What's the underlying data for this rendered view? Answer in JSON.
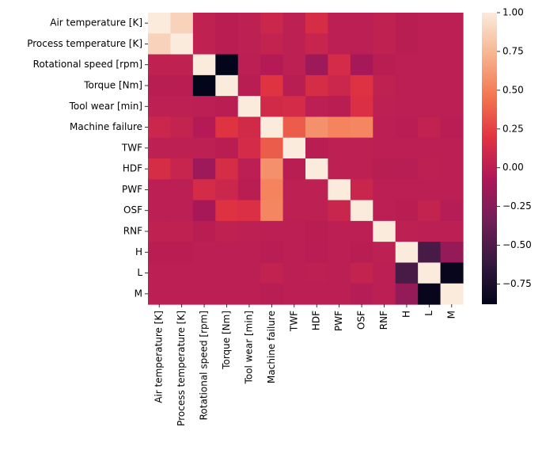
{
  "chart_data": {
    "type": "heatmap",
    "title": "",
    "xlabel": "",
    "ylabel": "",
    "labels": [
      "Air temperature [K]",
      "Process temperature [K]",
      "Rotational speed [rpm]",
      "Torque [Nm]",
      "Tool wear [min]",
      "Machine failure",
      "TWF",
      "HDF",
      "PWF",
      "OSF",
      "RNF",
      "H",
      "L",
      "M"
    ],
    "matrix": [
      [
        1.0,
        0.88,
        0.02,
        -0.01,
        0.01,
        0.08,
        0.01,
        0.14,
        0.0,
        0.0,
        0.02,
        -0.01,
        0.0,
        0.0
      ],
      [
        0.88,
        1.0,
        0.02,
        -0.01,
        0.01,
        0.04,
        0.01,
        0.06,
        0.0,
        0.0,
        0.02,
        -0.01,
        0.0,
        0.0
      ],
      [
        0.02,
        0.02,
        1.0,
        -0.88,
        0.0,
        -0.04,
        0.01,
        -0.14,
        0.12,
        -0.1,
        -0.01,
        0.0,
        0.0,
        0.0
      ],
      [
        -0.01,
        -0.01,
        -0.88,
        1.0,
        -0.01,
        0.19,
        -0.01,
        0.14,
        0.08,
        0.18,
        0.02,
        0.0,
        0.0,
        0.0
      ],
      [
        0.01,
        0.01,
        0.0,
        -0.01,
        1.0,
        0.11,
        0.12,
        0.0,
        -0.01,
        0.16,
        0.01,
        0.0,
        0.0,
        0.0
      ],
      [
        0.08,
        0.04,
        -0.04,
        0.19,
        0.11,
        1.0,
        0.36,
        0.58,
        0.52,
        0.53,
        0.0,
        -0.02,
        0.03,
        -0.02
      ],
      [
        0.01,
        0.01,
        0.01,
        -0.01,
        0.12,
        0.36,
        1.0,
        -0.01,
        0.01,
        0.01,
        0.0,
        0.0,
        0.0,
        0.0
      ],
      [
        0.14,
        0.06,
        -0.14,
        0.14,
        0.0,
        0.58,
        -0.01,
        1.0,
        0.01,
        0.01,
        -0.01,
        -0.02,
        0.01,
        0.0
      ],
      [
        0.0,
        0.0,
        0.12,
        0.08,
        -0.01,
        0.52,
        0.01,
        0.01,
        1.0,
        0.07,
        0.0,
        0.0,
        0.0,
        0.0
      ],
      [
        0.0,
        0.0,
        -0.1,
        0.18,
        0.16,
        0.53,
        0.01,
        0.01,
        0.07,
        1.0,
        0.0,
        -0.01,
        0.04,
        -0.03
      ],
      [
        0.02,
        0.02,
        -0.01,
        0.02,
        0.01,
        0.0,
        0.0,
        -0.01,
        0.0,
        0.0,
        1.0,
        0.01,
        0.0,
        0.0
      ],
      [
        -0.01,
        -0.01,
        0.0,
        0.0,
        0.0,
        -0.02,
        0.0,
        -0.02,
        0.0,
        -0.01,
        0.01,
        1.0,
        -0.53,
        -0.18
      ],
      [
        0.0,
        0.0,
        0.0,
        0.0,
        0.0,
        0.03,
        0.0,
        0.01,
        0.0,
        0.04,
        0.0,
        -0.53,
        1.0,
        -0.86
      ],
      [
        0.0,
        0.0,
        0.0,
        0.0,
        0.0,
        -0.02,
        0.0,
        0.0,
        0.0,
        -0.03,
        0.0,
        -0.18,
        -0.86,
        1.0
      ]
    ],
    "colorbar": {
      "range": [
        -0.88,
        1.0
      ],
      "ticks": [
        1.0,
        0.75,
        0.5,
        0.25,
        0.0,
        -0.25,
        -0.5,
        -0.75
      ],
      "tick_labels": [
        "1.00",
        "0.75",
        "0.50",
        "0.25",
        "0.00",
        "−0.25",
        "−0.50",
        "−0.75"
      ],
      "colormap": "rocket",
      "stops": [
        "#03051a",
        "#35193e",
        "#701f57",
        "#ad1759",
        "#e13342",
        "#f37651",
        "#f6b48f",
        "#faebdd"
      ]
    },
    "grid": false,
    "legend": "colorbar-right"
  }
}
